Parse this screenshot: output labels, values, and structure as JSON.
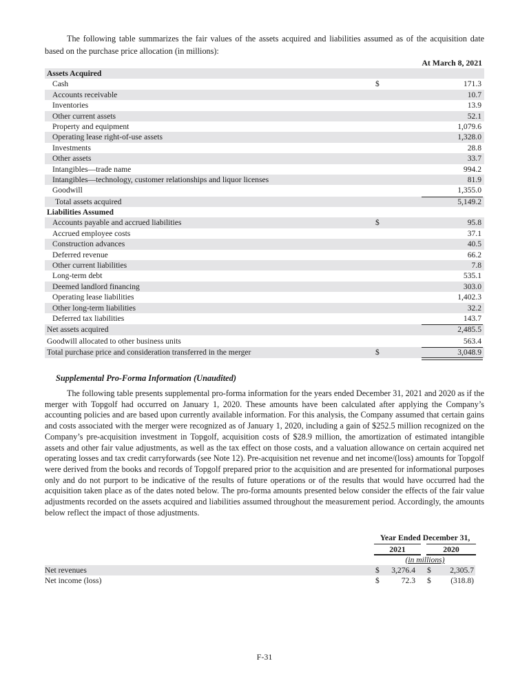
{
  "intro": "The following table summarizes the fair values of the assets acquired and liabilities assumed as of the acquisition date based on the purchase price allocation (in millions):",
  "table": {
    "column_header": "At March 8, 2021",
    "rows": [
      {
        "label": "Assets Acquired",
        "type": "section"
      },
      {
        "label": "Cash",
        "currency": "$",
        "value": "171.3"
      },
      {
        "label": "Accounts receivable",
        "value": "10.7"
      },
      {
        "label": "Inventories",
        "value": "13.9"
      },
      {
        "label": "Other current assets",
        "value": "52.1"
      },
      {
        "label": "Property and equipment",
        "value": "1,079.6"
      },
      {
        "label": "Operating lease right-of-use assets",
        "value": "1,328.0"
      },
      {
        "label": "Investments",
        "value": "28.8"
      },
      {
        "label": "Other assets",
        "value": "33.7"
      },
      {
        "label": "Intangibles—trade name",
        "value": "994.2"
      },
      {
        "label": "Intangibles—technology, customer relationships and liquor licenses",
        "value": "81.9"
      },
      {
        "label": "Goodwill",
        "value": "1,355.0"
      },
      {
        "label": "Total assets acquired",
        "value": "5,149.2",
        "type": "subtotal"
      },
      {
        "label": "Liabilities Assumed",
        "type": "section"
      },
      {
        "label": "Accounts payable and accrued liabilities",
        "currency": "$",
        "value": "95.8"
      },
      {
        "label": "Accrued employee costs",
        "value": "37.1"
      },
      {
        "label": "Construction advances",
        "value": "40.5"
      },
      {
        "label": "Deferred revenue",
        "value": "66.2"
      },
      {
        "label": "Other current liabilities",
        "value": "7.8"
      },
      {
        "label": "Long-term debt",
        "value": "535.1"
      },
      {
        "label": "Deemed landlord financing",
        "value": "303.0"
      },
      {
        "label": "Operating lease liabilities",
        "value": "1,402.3"
      },
      {
        "label": "Other long-term liabilities",
        "value": "32.2"
      },
      {
        "label": "Deferred tax liabilities",
        "value": "143.7"
      },
      {
        "label": "Net assets acquired",
        "value": "2,485.5",
        "type": "total"
      },
      {
        "label": "Goodwill allocated to other business units",
        "value": "563.4",
        "type": "total-plain"
      },
      {
        "label": "Total purchase price and consideration transferred in the merger",
        "currency": "$",
        "value": "3,048.9",
        "type": "grand"
      }
    ]
  },
  "proforma": {
    "heading": "Supplemental Pro-Forma Information (Unaudited)",
    "paragraph": "The following table presents supplemental pro-forma information for the years ended December 31, 2021 and 2020 as if the merger with Topgolf had occurred on January 1, 2020. These amounts have been calculated after applying the Company’s accounting policies and are based upon currently available information. For this analysis, the Company assumed that certain gains and costs associated with the merger were recognized as of January 1, 2020, including a gain of $252.5 million recognized on the Company’s pre-acquisition investment in Topgolf, acquisition costs of $28.9 million, the amortization of estimated intangible assets and other fair value adjustments, as well as the tax effect on those costs, and a valuation allowance on certain acquired net operating losses and tax credit carryforwards (see Note 12). Pre-acquisition net revenue and net income/(loss) amounts for Topgolf were derived from the books and records of Topgolf prepared prior to the acquisition and are presented for informational purposes only and do not purport to be indicative of the results of future operations or of the results that would have occurred had the acquisition taken place as of the dates noted below. The pro-forma amounts presented below consider the effects of the fair value adjustments recorded on the assets acquired and liabilities assumed throughout the measurement period. Accordingly, the amounts below reflect the impact of those adjustments.",
    "table": {
      "header": "Year Ended December 31,",
      "years": [
        "2021",
        "2020"
      ],
      "units": "(in millions)",
      "rows": [
        {
          "label": "Net revenues",
          "c1": "$",
          "v1": "3,276.4",
          "c2": "$",
          "v2": "2,305.7"
        },
        {
          "label": "Net income (loss)",
          "c1": "$",
          "v1": "72.3",
          "c2": "$",
          "v2": "(318.8)"
        }
      ]
    }
  },
  "page_number": "F-31"
}
